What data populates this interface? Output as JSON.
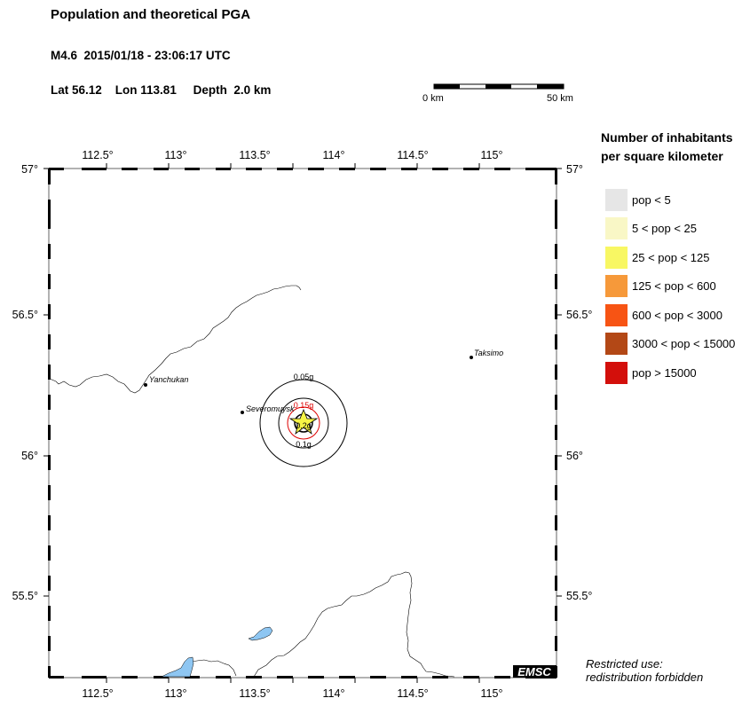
{
  "header": {
    "title": "Population and theoretical PGA",
    "event": "M4.6  2015/01/18 - 23:06:17 UTC",
    "coords": "Lat 56.12    Lon 113.81     Depth  2.0 km"
  },
  "scale": {
    "start": "0 km",
    "end": "50 km"
  },
  "map": {
    "lon_ticks": [
      "112.5°",
      "113°",
      "113.5°",
      "114°",
      "114.5°",
      "115°"
    ],
    "lat_ticks": [
      "57°",
      "56.5°",
      "56°",
      "55.5°"
    ],
    "cities": [
      {
        "name": "Yanchukan"
      },
      {
        "name": "Severomuysk"
      },
      {
        "name": "Taksimo"
      }
    ],
    "pga_labels": [
      "0.05g",
      "0.15g",
      "0.2g",
      "0.1g"
    ],
    "logo": "EMSC",
    "colors": {
      "water": "#8ec6f2",
      "epicenter": "#f7f545",
      "pga_inner": "#dd0000"
    }
  },
  "legend": {
    "title_line1": "Number of inhabitants",
    "title_line2": "per square kilometer",
    "items": [
      {
        "label": "pop < 5",
        "color": "#e6e6e6"
      },
      {
        "label": "5 < pop < 25",
        "color": "#f9f7c6"
      },
      {
        "label": "25 < pop < 125",
        "color": "#f8f763"
      },
      {
        "label": "125 < pop < 600",
        "color": "#f6993a"
      },
      {
        "label": "600 < pop < 3000",
        "color": "#f75414"
      },
      {
        "label": "3000 < pop < 15000",
        "color": "#b34816"
      },
      {
        "label": "pop > 15000",
        "color": "#d30f0b"
      }
    ]
  },
  "notice": {
    "line1": "Restricted use:",
    "line2": "redistribution forbidden"
  }
}
